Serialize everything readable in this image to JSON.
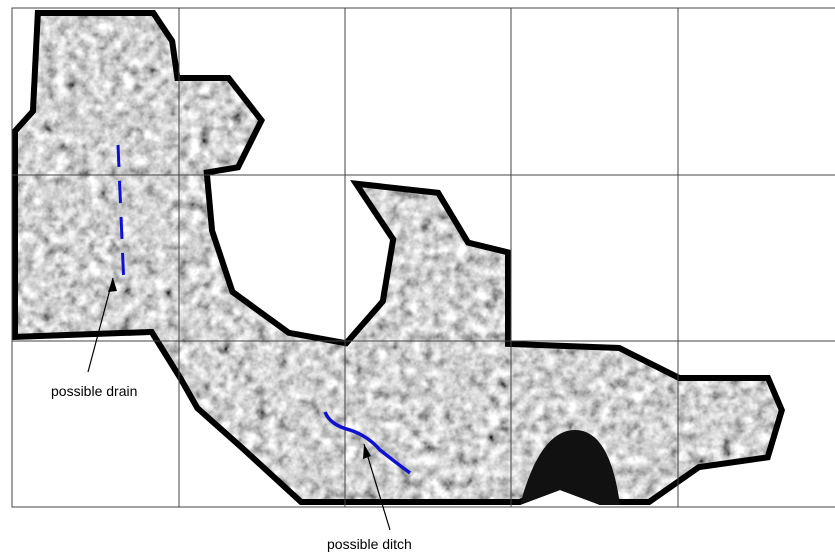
{
  "annotations": [
    {
      "label": "possible drain"
    },
    {
      "label": "possible ditch"
    }
  ]
}
